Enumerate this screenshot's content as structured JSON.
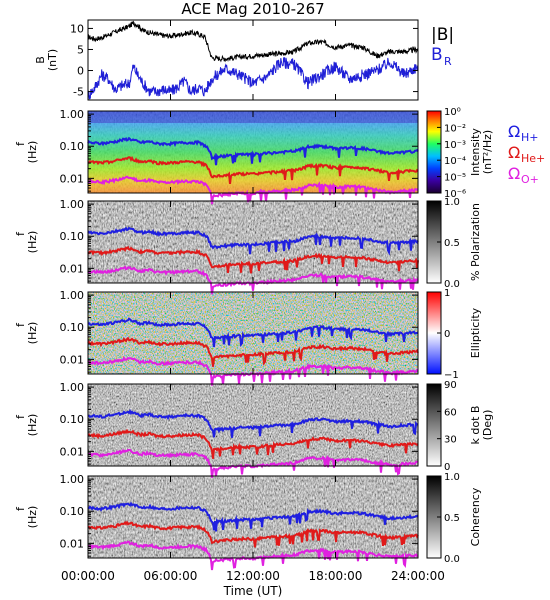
{
  "title": "ACE Mag 2010-267",
  "x_axis": {
    "label": "Time (UT)",
    "ticks": [
      "00:00:00",
      "06:00:00",
      "12:00:00",
      "18:00:00",
      "24:00:00"
    ],
    "range_hours": [
      0,
      24
    ]
  },
  "colors": {
    "B_total": "#000000",
    "B_R": "#1f1fd6",
    "H_plus": "#1f1fe0",
    "He_plus": "#e01a1a",
    "O_plus": "#e020e0"
  },
  "legend": {
    "B_total": "|B|",
    "B_R_main": "B",
    "B_R_sub": "R",
    "omega": "Ω",
    "H_sub": "H+",
    "He_sub": "He+",
    "O_sub": "O+"
  },
  "freq_ticks": [
    "1.00",
    "0.10",
    "0.01"
  ],
  "chart_data": [
    {
      "type": "line",
      "panel": "B",
      "ylabel_main": "B",
      "ylabel_unit": "(nT)",
      "ylim": [
        -7,
        12
      ],
      "y_ticks": [
        "10",
        "5",
        "0",
        "-5"
      ],
      "series": [
        {
          "name": "|B|",
          "x_hours": [
            0,
            0.5,
            1,
            1.5,
            2,
            2.5,
            3,
            3.3,
            3.6,
            4,
            4.5,
            5,
            5.5,
            6,
            6.5,
            7,
            7.5,
            8,
            8.5,
            9,
            10,
            11,
            12,
            13,
            14,
            15,
            16,
            17,
            18,
            19,
            20,
            21,
            22,
            23,
            24
          ],
          "values": [
            8,
            7.5,
            7.8,
            8.5,
            9.2,
            9.8,
            10.5,
            11.3,
            10.8,
            9.5,
            9,
            8.6,
            8.3,
            8.2,
            8.4,
            8.8,
            9,
            8.7,
            8,
            3,
            2.8,
            3.2,
            3.5,
            3.8,
            4,
            4.5,
            6.5,
            6.8,
            5.5,
            6,
            5.5,
            3.5,
            4.5,
            4.5,
            5
          ]
        },
        {
          "name": "B_R",
          "x_hours": [
            0,
            0.5,
            1,
            1.5,
            2,
            2.5,
            3,
            3.3,
            3.6,
            4,
            4.5,
            5,
            5.5,
            6,
            6.5,
            7,
            7.5,
            8,
            8.5,
            9,
            10,
            11,
            12,
            13,
            14,
            15,
            16,
            17,
            18,
            19,
            20,
            21,
            22,
            23,
            24
          ],
          "values": [
            -6,
            -4,
            -1,
            -2,
            -4.5,
            -3.5,
            -3,
            1,
            -1,
            -3,
            -5,
            -5,
            -4.5,
            -5,
            -4,
            -2.5,
            -5,
            -4,
            -5,
            -2,
            0.5,
            -1,
            -3,
            -1.5,
            2,
            1.5,
            -3,
            -1,
            1,
            -2,
            -1,
            0,
            2,
            -1,
            1
          ]
        }
      ]
    },
    {
      "type": "heatmap",
      "panel": "Intensity",
      "ylabel_main": "f",
      "ylabel_unit": "(Hz)",
      "colorbar_label": "Intensity",
      "colorbar_unit": "(nT²/Hz)",
      "colorbar_ticks": [
        "10⁰",
        "10⁻²",
        "10⁻³",
        "10⁻⁴",
        "10⁻⁵",
        "10⁻⁶"
      ],
      "colorbar_scale": "rainbow"
    },
    {
      "type": "heatmap",
      "panel": "Polarization",
      "ylabel_main": "f",
      "ylabel_unit": "(Hz)",
      "colorbar_label": "% Polarization",
      "colorbar_ticks": [
        "1.0",
        "0.5",
        "0.0"
      ],
      "colorbar_scale": "gray"
    },
    {
      "type": "heatmap",
      "panel": "Ellipticity",
      "ylabel_main": "f",
      "ylabel_unit": "(Hz)",
      "colorbar_label": "Ellipticity",
      "colorbar_ticks": [
        "1",
        "0",
        "−1"
      ],
      "colorbar_scale": "blue-white-red"
    },
    {
      "type": "heatmap",
      "panel": "Wave normal angle",
      "ylabel_main": "f",
      "ylabel_unit": "(Hz)",
      "colorbar_label": "k dot B",
      "colorbar_unit": "(Deg)",
      "colorbar_ticks": [
        "90",
        "60",
        "30",
        "0"
      ],
      "colorbar_scale": "gray"
    },
    {
      "type": "heatmap",
      "panel": "Coherency",
      "ylabel_main": "f",
      "ylabel_unit": "(Hz)",
      "colorbar_label": "Coherency",
      "colorbar_ticks": [
        "1.0",
        "0.5",
        "0.0"
      ],
      "colorbar_scale": "gray"
    }
  ],
  "gyrofrequency_overlay": {
    "x_hours": [
      0,
      1,
      2,
      2.6,
      3,
      3.4,
      3.8,
      4.5,
      5,
      6,
      7,
      8,
      8.6,
      9,
      10,
      11,
      12,
      13,
      14,
      15,
      15.5,
      16,
      17,
      18,
      19,
      20,
      21,
      22,
      23,
      24
    ],
    "H_plus_hz": [
      0.13,
      0.12,
      0.14,
      0.16,
      0.17,
      0.15,
      0.13,
      0.14,
      0.12,
      0.12,
      0.13,
      0.13,
      0.1,
      0.045,
      0.05,
      0.055,
      0.055,
      0.06,
      0.065,
      0.07,
      0.08,
      0.095,
      0.1,
      0.085,
      0.09,
      0.085,
      0.07,
      0.06,
      0.065,
      0.07
    ]
  }
}
